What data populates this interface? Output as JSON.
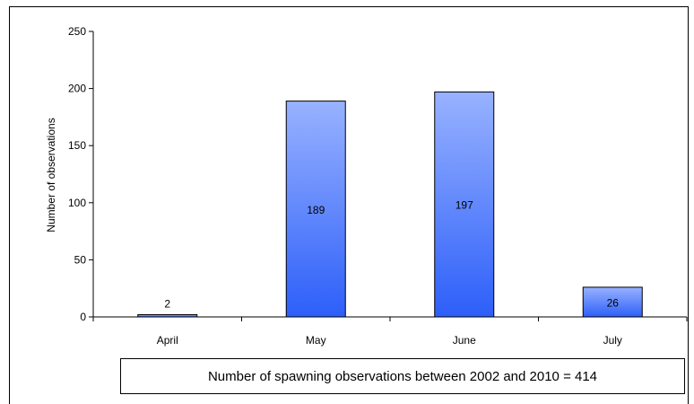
{
  "chart_data": {
    "type": "bar",
    "categories": [
      "April",
      "May",
      "June",
      "July"
    ],
    "values": [
      2,
      189,
      197,
      26
    ],
    "data_labels": [
      "2",
      "189",
      "197",
      "26"
    ],
    "xlabel": "",
    "ylabel": "Number of observations",
    "ylim": [
      0,
      250
    ],
    "yticks": [
      0,
      50,
      100,
      150,
      200,
      250
    ],
    "grid": false,
    "legend": "none",
    "bar_color_top": "#98b2ff",
    "bar_color_bottom": "#2d5ff9",
    "annotation": "Number of spawning observations between 2002 and 2010 = 414"
  }
}
